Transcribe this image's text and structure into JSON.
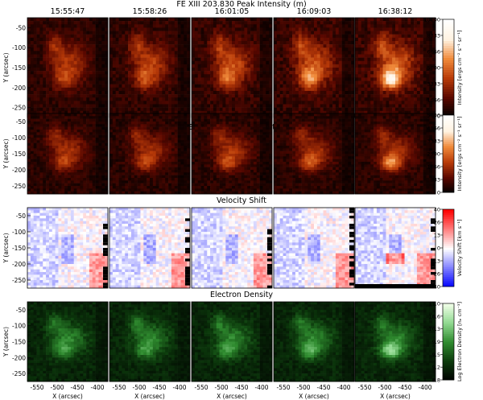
{
  "figure": {
    "times": [
      "15:55:47",
      "15:58:26",
      "16:01:05",
      "16:09:03",
      "16:38:12"
    ],
    "panels": [
      {
        "title": "FE XIII 203.830 Peak Intensity (m)",
        "colorbar_label": "Intensity [ergs cm⁻² s⁻¹ sr⁻¹]",
        "colorbar_ticks": [
          "10000",
          "8333",
          "6666",
          "5000",
          "3333",
          "1666",
          "0"
        ],
        "colormap": "heat",
        "colors": [
          "#000000",
          "#5a0800",
          "#b83a08",
          "#f08a3a",
          "#fff2e0",
          "#ffffff"
        ]
      },
      {
        "title": "FE XIII 202.040 Peak Intensity",
        "colorbar_label": "Intensity [ergs cm⁻² s⁻¹ sr⁻¹]",
        "colorbar_ticks": [
          "5000",
          "4166",
          "3333",
          "2500",
          "1666",
          "833",
          "0"
        ],
        "colormap": "heat",
        "colors": [
          "#000000",
          "#5a0800",
          "#b83a08",
          "#f08a3a",
          "#fff2e0",
          "#ffffff"
        ]
      },
      {
        "title": "Velocity Shift",
        "colorbar_label": "Velocity Shift [km s⁻¹]",
        "colorbar_ticks": [
          "40",
          "26",
          "13",
          "0",
          "-13",
          "-26",
          "-40"
        ],
        "colormap": "diverging",
        "colors": [
          "#0000ff",
          "#7f7fff",
          "#ffffff",
          "#ff7f7f",
          "#ff0000"
        ]
      },
      {
        "title": "Electron Density",
        "colorbar_label": "Log Electron Density [nₑ cm⁻³]",
        "colorbar_ticks": [
          "11.0",
          "10.6",
          "10.3",
          "9.9",
          "9.5",
          "9.2",
          "8.8"
        ],
        "colormap": "green",
        "colors": [
          "#000000",
          "#0c3a0c",
          "#2e8a2e",
          "#8fd88f",
          "#f0ffe8"
        ]
      }
    ],
    "y_axis": {
      "label": "Y (arcsec)",
      "ticks": [
        "-50",
        "-100",
        "-150",
        "-200",
        "-250"
      ]
    },
    "x_axis": {
      "label": "X (arcsec)",
      "ticks": [
        "-550",
        "-500",
        "-450",
        "-400"
      ]
    }
  }
}
